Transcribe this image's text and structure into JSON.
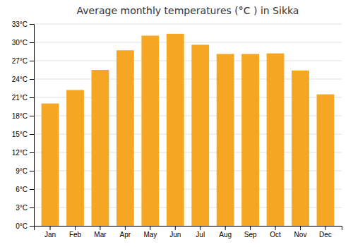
{
  "chart_data": {
    "type": "bar",
    "title": "Average monthly temperatures (°C ) in Sikka",
    "categories": [
      "Jan",
      "Feb",
      "Mar",
      "Apr",
      "May",
      "Jun",
      "Jul",
      "Aug",
      "Sep",
      "Oct",
      "Nov",
      "Dec"
    ],
    "values": [
      20.0,
      22.2,
      25.5,
      28.7,
      31.1,
      31.4,
      29.6,
      28.1,
      28.1,
      28.2,
      25.4,
      21.5
    ],
    "color": "#F5A623",
    "ylim": [
      0,
      33
    ],
    "yticks": [
      {
        "value": 0,
        "label": "0°C"
      },
      {
        "value": 3,
        "label": "3°C"
      },
      {
        "value": 6,
        "label": "6°C"
      },
      {
        "value": 9,
        "label": "9°C"
      },
      {
        "value": 12,
        "label": "12°C"
      },
      {
        "value": 15,
        "label": "15°C"
      },
      {
        "value": 18,
        "label": "18°C"
      },
      {
        "value": 21,
        "label": "21°C"
      },
      {
        "value": 24,
        "label": "24°C"
      },
      {
        "value": 27,
        "label": "27°C"
      },
      {
        "value": 30,
        "label": "30°C"
      },
      {
        "value": 33,
        "label": "33°C"
      }
    ],
    "grid": true
  }
}
